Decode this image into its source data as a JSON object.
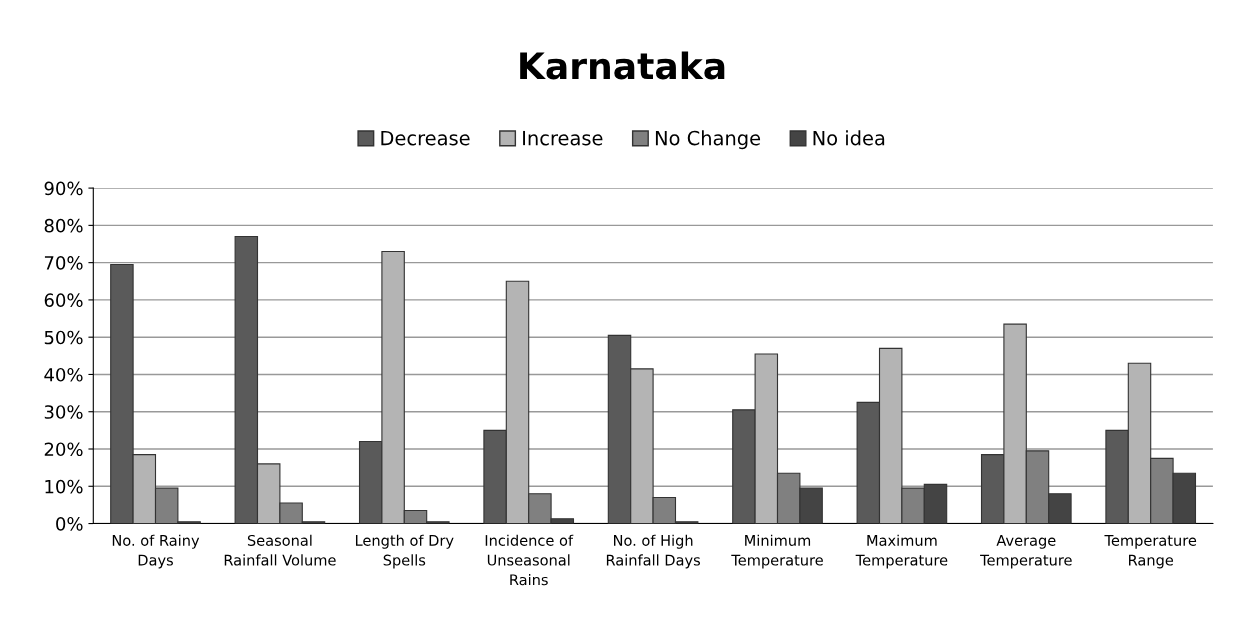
{
  "chart_data": {
    "type": "bar",
    "title": "Karnataka",
    "categories": [
      "No. of Rainy Days",
      "Seasonal Rainfall Volume",
      "Length of Dry Spells",
      "Incidence of Unseasonal Rains",
      "No. of High Rainfall Days",
      "Minimum Temperature",
      "Maximum Temperature",
      "Average Temperature",
      "Temperature Range"
    ],
    "series": [
      {
        "name": "Decrease",
        "color": "#5a5a5a",
        "values": [
          69.5,
          77,
          22,
          25,
          50.5,
          30.5,
          32.5,
          18.5,
          25
        ]
      },
      {
        "name": "Increase",
        "color": "#b4b4b4",
        "values": [
          18.5,
          16,
          73,
          65,
          41.5,
          45.5,
          47,
          53.5,
          43
        ]
      },
      {
        "name": "No Change",
        "color": "#808080",
        "values": [
          9.5,
          5.5,
          3.5,
          8,
          7,
          13.5,
          9.5,
          19.5,
          17.5
        ]
      },
      {
        "name": "No idea",
        "color": "#444444",
        "values": [
          0.5,
          0.5,
          0.5,
          1.3,
          0.5,
          9.5,
          10.5,
          8,
          13.5
        ]
      }
    ],
    "ylim": [
      0,
      90
    ],
    "yticks": [
      {
        "value": 0,
        "label": "0%"
      },
      {
        "value": 10,
        "label": "10%"
      },
      {
        "value": 20,
        "label": "20%"
      },
      {
        "value": 30,
        "label": "30%"
      },
      {
        "value": 40,
        "label": "40%"
      },
      {
        "value": 50,
        "label": "50%"
      },
      {
        "value": 60,
        "label": "60%"
      },
      {
        "value": 70,
        "label": "70%"
      },
      {
        "value": 80,
        "label": "80%"
      },
      {
        "value": 90,
        "label": "90%"
      }
    ],
    "grid": "y",
    "legend": "top"
  }
}
